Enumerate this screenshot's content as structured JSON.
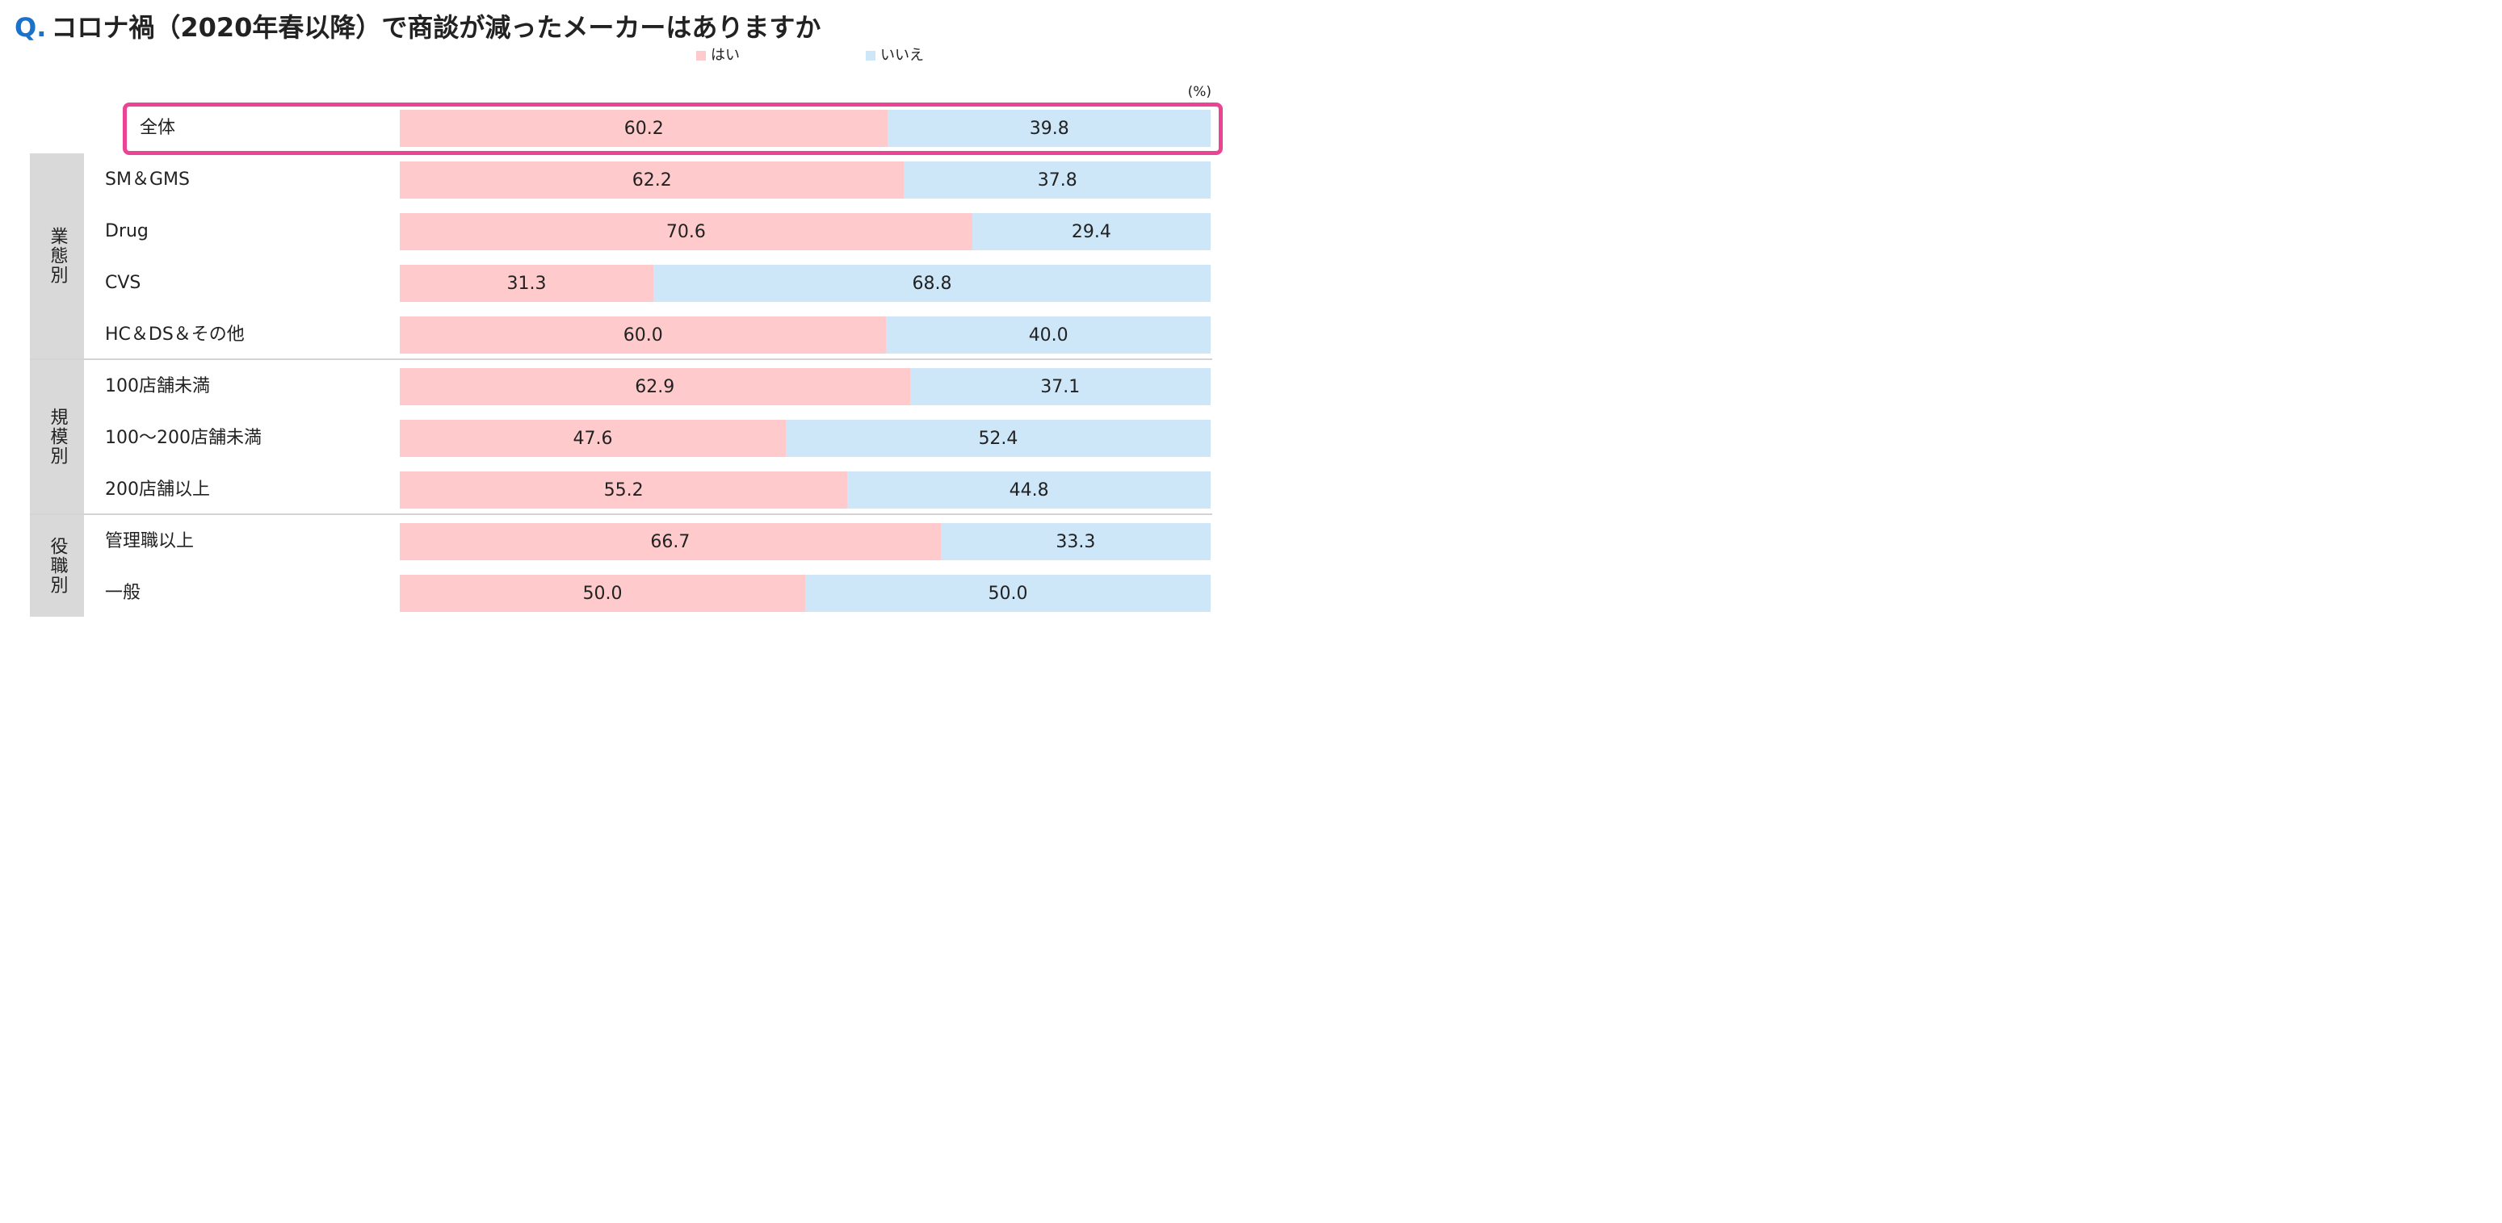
{
  "title_prefix": "Q.",
  "title": "コロナ禍（2020年春以降）で商談が減ったメーカーはありますか",
  "legend": {
    "yes": "はい",
    "no": "いいえ"
  },
  "unit_label": "(%)",
  "colors": {
    "yes": "#ffcacb",
    "no": "#cde7f9",
    "highlight": "#ec4495",
    "title_accent": "#1a73c9",
    "group_bg": "#d9d9d9"
  },
  "groups": [
    {
      "label": "業態別"
    },
    {
      "label": "規模別"
    },
    {
      "label": "役職別"
    }
  ],
  "chart_data": {
    "type": "bar",
    "orientation": "horizontal",
    "stacked": true,
    "percent": true,
    "categories": [
      "全体",
      "SM＆GMS",
      "Drug",
      "CVS",
      "HC＆DS＆その他",
      "100店舗未満",
      "100〜200店舗未満",
      "200店舗以上",
      "管理職以上",
      "一般"
    ],
    "series": [
      {
        "name": "はい",
        "values": [
          60.2,
          62.2,
          70.6,
          31.3,
          60.0,
          62.9,
          47.6,
          55.2,
          66.7,
          50.0
        ],
        "labels": [
          "60.2",
          "62.2",
          "70.6",
          "31.3",
          "60.0",
          "62.9",
          "47.6",
          "55.2",
          "66.7",
          "50.0"
        ]
      },
      {
        "name": "いいえ",
        "values": [
          39.8,
          37.8,
          29.4,
          68.8,
          40.0,
          37.1,
          52.4,
          44.8,
          33.3,
          50.0
        ],
        "labels": [
          "39.8",
          "37.8",
          "29.4",
          "68.8",
          "40.0",
          "37.1",
          "52.4",
          "44.8",
          "33.3",
          "50.0"
        ]
      }
    ],
    "xlim": [
      0,
      100
    ],
    "legend_position": "top-center",
    "grid": false,
    "highlighted_category": "全体"
  }
}
